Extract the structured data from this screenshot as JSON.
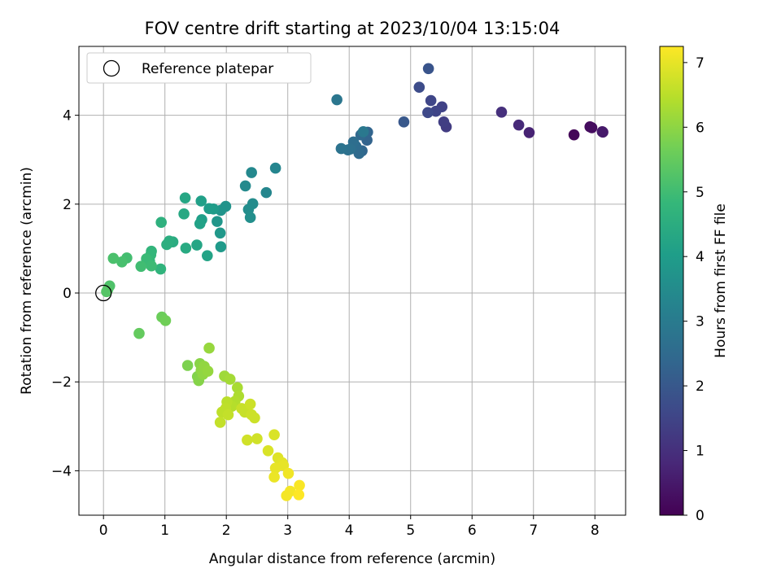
{
  "chart_data": {
    "type": "scatter",
    "title": "FOV centre drift starting at 2023/10/04 13:15:04",
    "xlabel": "Angular distance from reference (arcmin)",
    "ylabel": "Rotation from reference (arcmin)",
    "xlim": [
      -0.4,
      8.5
    ],
    "ylim": [
      -5.0,
      5.55
    ],
    "x_ticks": [
      0,
      1,
      2,
      3,
      4,
      5,
      6,
      7,
      8
    ],
    "y_ticks": [
      -4,
      -2,
      0,
      2,
      4
    ],
    "grid": true,
    "legend": {
      "position": "top-left",
      "entries": [
        "Reference platepar"
      ]
    },
    "reference_point": {
      "x": 0,
      "y": 0,
      "label": "Reference platepar"
    },
    "colorbar": {
      "label": "Hours from first FF file",
      "range": [
        0,
        7.25
      ],
      "ticks": [
        0,
        1,
        2,
        3,
        4,
        5,
        6,
        7
      ],
      "colormap": "viridis"
    },
    "points": [
      {
        "x": 7.66,
        "y": 3.56,
        "h": 0.1
      },
      {
        "x": 7.92,
        "y": 3.74,
        "h": 0.2
      },
      {
        "x": 7.95,
        "y": 3.72,
        "h": 0.25
      },
      {
        "x": 8.12,
        "y": 3.63,
        "h": 0.45
      },
      {
        "x": 8.13,
        "y": 3.62,
        "h": 0.5
      },
      {
        "x": 6.93,
        "y": 3.61,
        "h": 0.7
      },
      {
        "x": 6.76,
        "y": 3.78,
        "h": 0.85
      },
      {
        "x": 6.48,
        "y": 4.07,
        "h": 1.0
      },
      {
        "x": 5.58,
        "y": 3.74,
        "h": 1.3
      },
      {
        "x": 5.54,
        "y": 3.85,
        "h": 1.35
      },
      {
        "x": 5.51,
        "y": 4.19,
        "h": 1.45
      },
      {
        "x": 5.41,
        "y": 4.09,
        "h": 1.5
      },
      {
        "x": 5.33,
        "y": 4.33,
        "h": 1.55
      },
      {
        "x": 5.28,
        "y": 4.06,
        "h": 1.6
      },
      {
        "x": 5.14,
        "y": 4.63,
        "h": 1.7
      },
      {
        "x": 5.29,
        "y": 5.05,
        "h": 1.9
      },
      {
        "x": 4.89,
        "y": 3.85,
        "h": 2.0
      },
      {
        "x": 4.29,
        "y": 3.44,
        "h": 2.3
      },
      {
        "x": 4.3,
        "y": 3.62,
        "h": 2.35
      },
      {
        "x": 4.21,
        "y": 3.2,
        "h": 2.4
      },
      {
        "x": 4.19,
        "y": 3.56,
        "h": 2.45
      },
      {
        "x": 4.16,
        "y": 3.14,
        "h": 2.5
      },
      {
        "x": 4.11,
        "y": 3.3,
        "h": 2.55
      },
      {
        "x": 4.07,
        "y": 3.4,
        "h": 2.6
      },
      {
        "x": 4.02,
        "y": 3.24,
        "h": 2.65
      },
      {
        "x": 3.98,
        "y": 3.22,
        "h": 2.7
      },
      {
        "x": 3.87,
        "y": 3.25,
        "h": 2.75
      },
      {
        "x": 3.8,
        "y": 4.35,
        "h": 2.85
      },
      {
        "x": 4.23,
        "y": 3.63,
        "h": 2.9
      },
      {
        "x": 2.8,
        "y": 2.81,
        "h": 3.3
      },
      {
        "x": 2.65,
        "y": 2.26,
        "h": 3.35
      },
      {
        "x": 2.41,
        "y": 2.71,
        "h": 3.4
      },
      {
        "x": 2.31,
        "y": 2.41,
        "h": 3.45
      },
      {
        "x": 2.43,
        "y": 2.01,
        "h": 3.5
      },
      {
        "x": 2.36,
        "y": 1.88,
        "h": 3.55
      },
      {
        "x": 2.39,
        "y": 1.7,
        "h": 3.6
      },
      {
        "x": 1.99,
        "y": 1.95,
        "h": 3.7
      },
      {
        "x": 1.91,
        "y": 1.86,
        "h": 3.75
      },
      {
        "x": 1.85,
        "y": 1.61,
        "h": 3.8
      },
      {
        "x": 1.9,
        "y": 1.35,
        "h": 3.85
      },
      {
        "x": 1.91,
        "y": 1.04,
        "h": 3.9
      },
      {
        "x": 1.79,
        "y": 1.89,
        "h": 3.95
      },
      {
        "x": 1.72,
        "y": 1.9,
        "h": 4.0
      },
      {
        "x": 1.6,
        "y": 1.65,
        "h": 4.05
      },
      {
        "x": 1.59,
        "y": 2.07,
        "h": 4.1
      },
      {
        "x": 1.57,
        "y": 1.56,
        "h": 4.15
      },
      {
        "x": 1.69,
        "y": 0.84,
        "h": 4.2
      },
      {
        "x": 1.52,
        "y": 1.08,
        "h": 4.25
      },
      {
        "x": 1.33,
        "y": 2.14,
        "h": 4.3
      },
      {
        "x": 1.31,
        "y": 1.78,
        "h": 4.35
      },
      {
        "x": 1.34,
        "y": 1.01,
        "h": 4.4
      },
      {
        "x": 1.13,
        "y": 1.15,
        "h": 4.45
      },
      {
        "x": 1.07,
        "y": 1.17,
        "h": 4.5
      },
      {
        "x": 1.03,
        "y": 1.09,
        "h": 4.55
      },
      {
        "x": 0.94,
        "y": 1.59,
        "h": 4.6
      },
      {
        "x": 0.93,
        "y": 0.54,
        "h": 4.7
      },
      {
        "x": 0.78,
        "y": 0.94,
        "h": 4.75
      },
      {
        "x": 0.77,
        "y": 0.86,
        "h": 4.8
      },
      {
        "x": 0.75,
        "y": 0.72,
        "h": 4.85
      },
      {
        "x": 0.7,
        "y": 0.77,
        "h": 4.9
      },
      {
        "x": 0.78,
        "y": 0.61,
        "h": 4.95
      },
      {
        "x": 0.61,
        "y": 0.6,
        "h": 5.0
      },
      {
        "x": 0.38,
        "y": 0.79,
        "h": 5.05
      },
      {
        "x": 0.3,
        "y": 0.7,
        "h": 5.1
      },
      {
        "x": 0.16,
        "y": 0.78,
        "h": 5.15
      },
      {
        "x": 0.1,
        "y": 0.16,
        "h": 5.2
      },
      {
        "x": 0.07,
        "y": 0.08,
        "h": 5.25
      },
      {
        "x": 0.05,
        "y": 0.03,
        "h": 5.3
      },
      {
        "x": 0.58,
        "y": -0.91,
        "h": 5.5
      },
      {
        "x": 0.95,
        "y": -0.54,
        "h": 5.6
      },
      {
        "x": 1.01,
        "y": -0.62,
        "h": 5.65
      },
      {
        "x": 1.37,
        "y": -1.63,
        "h": 5.8
      },
      {
        "x": 1.53,
        "y": -1.88,
        "h": 5.85
      },
      {
        "x": 1.55,
        "y": -1.97,
        "h": 5.9
      },
      {
        "x": 1.57,
        "y": -1.59,
        "h": 5.95
      },
      {
        "x": 1.59,
        "y": -1.74,
        "h": 6.0
      },
      {
        "x": 1.62,
        "y": -1.83,
        "h": 6.02
      },
      {
        "x": 1.64,
        "y": -1.65,
        "h": 6.05
      },
      {
        "x": 1.7,
        "y": -1.76,
        "h": 6.08
      },
      {
        "x": 1.72,
        "y": -1.24,
        "h": 6.1
      },
      {
        "x": 1.97,
        "y": -1.87,
        "h": 6.2
      },
      {
        "x": 2.06,
        "y": -1.94,
        "h": 6.25
      },
      {
        "x": 2.18,
        "y": -2.13,
        "h": 6.3
      },
      {
        "x": 2.2,
        "y": -2.32,
        "h": 6.35
      },
      {
        "x": 2.14,
        "y": -2.44,
        "h": 6.4
      },
      {
        "x": 2.09,
        "y": -2.55,
        "h": 6.45
      },
      {
        "x": 2.01,
        "y": -2.45,
        "h": 6.5
      },
      {
        "x": 1.99,
        "y": -2.6,
        "h": 6.55
      },
      {
        "x": 1.93,
        "y": -2.68,
        "h": 6.55
      },
      {
        "x": 1.9,
        "y": -2.91,
        "h": 6.6
      },
      {
        "x": 2.03,
        "y": -2.74,
        "h": 6.6
      },
      {
        "x": 2.25,
        "y": -2.6,
        "h": 6.65
      },
      {
        "x": 2.3,
        "y": -2.68,
        "h": 6.65
      },
      {
        "x": 2.39,
        "y": -2.5,
        "h": 6.7
      },
      {
        "x": 2.41,
        "y": -2.74,
        "h": 6.7
      },
      {
        "x": 2.46,
        "y": -2.81,
        "h": 6.7
      },
      {
        "x": 2.5,
        "y": -3.28,
        "h": 6.75
      },
      {
        "x": 2.34,
        "y": -3.31,
        "h": 6.75
      },
      {
        "x": 2.68,
        "y": -3.55,
        "h": 6.85
      },
      {
        "x": 2.78,
        "y": -3.19,
        "h": 6.85
      },
      {
        "x": 2.84,
        "y": -3.71,
        "h": 6.9
      },
      {
        "x": 2.91,
        "y": -3.82,
        "h": 6.95
      },
      {
        "x": 2.93,
        "y": -3.88,
        "h": 7.0
      },
      {
        "x": 2.8,
        "y": -3.94,
        "h": 7.0
      },
      {
        "x": 2.78,
        "y": -4.14,
        "h": 7.05
      },
      {
        "x": 3.01,
        "y": -4.06,
        "h": 7.1
      },
      {
        "x": 3.04,
        "y": -4.46,
        "h": 7.15
      },
      {
        "x": 2.98,
        "y": -4.56,
        "h": 7.15
      },
      {
        "x": 3.19,
        "y": -4.33,
        "h": 7.2
      },
      {
        "x": 3.18,
        "y": -4.54,
        "h": 7.25
      }
    ]
  }
}
